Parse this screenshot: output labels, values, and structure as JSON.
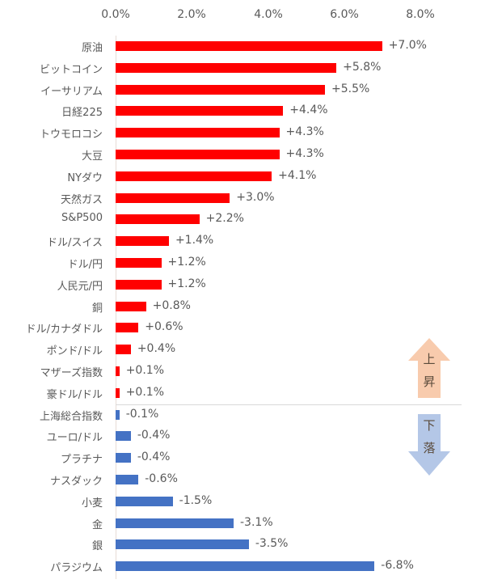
{
  "chart_data": {
    "type": "bar",
    "orientation": "horizontal",
    "title": "",
    "xlabel": "",
    "ylabel": "",
    "xlim": [
      0,
      8
    ],
    "x_ticks": [
      "0.0%",
      "2.0%",
      "4.0%",
      "6.0%",
      "8.0%"
    ],
    "axis_position": "top",
    "grid": false,
    "note": "Bar length represents absolute change; red = rise, blue = fall",
    "categories": [
      "原油",
      "ビットコイン",
      "イーサリアム",
      "日経225",
      "トウモロコシ",
      "大豆",
      "NYダウ",
      "天然ガス",
      "S&P500",
      "ドル/スイス",
      "ドル/円",
      "人民元/円",
      "銅",
      "ドル/カナダドル",
      "ポンド/ドル",
      "マザーズ指数",
      "豪ドル/ドル",
      "上海総合指数",
      "ユーロ/ドル",
      "プラチナ",
      "ナスダック",
      "小麦",
      "金",
      "銀",
      "パラジウム"
    ],
    "values": [
      7.0,
      5.8,
      5.5,
      4.4,
      4.3,
      4.3,
      4.1,
      3.0,
      2.2,
      1.4,
      1.2,
      1.2,
      0.8,
      0.6,
      0.4,
      0.1,
      0.1,
      -0.1,
      -0.4,
      -0.4,
      -0.6,
      -1.5,
      -3.1,
      -3.5,
      -6.8
    ],
    "series": [
      {
        "name": "上昇",
        "color": "#ff0000"
      },
      {
        "name": "下落",
        "color": "#4472c4"
      }
    ]
  },
  "axis": {
    "ticks": [
      "0.0%",
      "2.0%",
      "4.0%",
      "6.0%",
      "8.0%"
    ]
  },
  "rows": [
    {
      "label": "原油",
      "value": 7.0,
      "text": "+7.0%"
    },
    {
      "label": "ビットコイン",
      "value": 5.8,
      "text": "+5.8%"
    },
    {
      "label": "イーサリアム",
      "value": 5.5,
      "text": "+5.5%"
    },
    {
      "label": "日経225",
      "value": 4.4,
      "text": "+4.4%"
    },
    {
      "label": "トウモロコシ",
      "value": 4.3,
      "text": "+4.3%"
    },
    {
      "label": "大豆",
      "value": 4.3,
      "text": "+4.3%"
    },
    {
      "label": "NYダウ",
      "value": 4.1,
      "text": "+4.1%"
    },
    {
      "label": "天然ガス",
      "value": 3.0,
      "text": "+3.0%"
    },
    {
      "label": "S&P500",
      "value": 2.2,
      "text": "+2.2%"
    },
    {
      "label": "ドル/スイス",
      "value": 1.4,
      "text": "+1.4%"
    },
    {
      "label": "ドル/円",
      "value": 1.2,
      "text": "+1.2%"
    },
    {
      "label": "人民元/円",
      "value": 1.2,
      "text": "+1.2%"
    },
    {
      "label": "銅",
      "value": 0.8,
      "text": "+0.8%"
    },
    {
      "label": "ドル/カナダドル",
      "value": 0.6,
      "text": "+0.6%"
    },
    {
      "label": "ポンド/ドル",
      "value": 0.4,
      "text": "+0.4%"
    },
    {
      "label": "マザーズ指数",
      "value": 0.1,
      "text": "+0.1%"
    },
    {
      "label": "豪ドル/ドル",
      "value": 0.1,
      "text": "+0.1%"
    },
    {
      "label": "上海総合指数",
      "value": -0.1,
      "text": "-0.1%"
    },
    {
      "label": "ユーロ/ドル",
      "value": -0.4,
      "text": "-0.4%"
    },
    {
      "label": "プラチナ",
      "value": -0.4,
      "text": "-0.4%"
    },
    {
      "label": "ナスダック",
      "value": -0.6,
      "text": "-0.6%"
    },
    {
      "label": "小麦",
      "value": -1.5,
      "text": "-1.5%"
    },
    {
      "label": "金",
      "value": -3.1,
      "text": "-3.1%"
    },
    {
      "label": "銀",
      "value": -3.5,
      "text": "-3.5%"
    },
    {
      "label": "パラジウム",
      "value": -6.8,
      "text": "-6.8%"
    }
  ],
  "legend": {
    "up": {
      "line1": "上",
      "line2": "昇",
      "color": "#f8cbad"
    },
    "down": {
      "line1": "下",
      "line2": "落",
      "color": "#b4c7e7"
    }
  }
}
